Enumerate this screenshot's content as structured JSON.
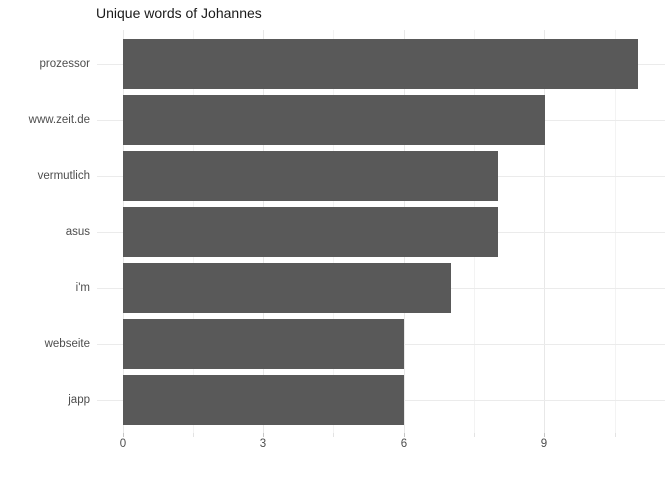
{
  "chart_data": {
    "type": "bar",
    "orientation": "horizontal",
    "title": "Unique words of Johannes",
    "categories": [
      "prozessor",
      "www.zeit.de",
      "vermutlich",
      "asus",
      "i'm",
      "webseite",
      "japp"
    ],
    "values": [
      11,
      9,
      8,
      8,
      7,
      6,
      6
    ],
    "xlabel": "",
    "ylabel": "",
    "xlim": [
      -0.55,
      11.55
    ],
    "x_major_ticks": [
      0,
      3,
      6,
      9
    ],
    "x_minor_ticks": [
      1.5,
      4.5,
      7.5,
      10.5
    ],
    "grid": "vertical major+minor gridlines; horizontal gridline per category row",
    "legend": "none",
    "colors": {
      "bar": "#595959",
      "grid_major": "#e8e8e8",
      "grid_minor": "#f3f3f3",
      "grid_horizontal": "#ebebeb",
      "tick_major": "#c6c6c6",
      "tick_minor": "#e3e3e3",
      "axis_text": "#4d4d4d",
      "title": "#1a1a1a",
      "background": "#ffffff"
    }
  }
}
